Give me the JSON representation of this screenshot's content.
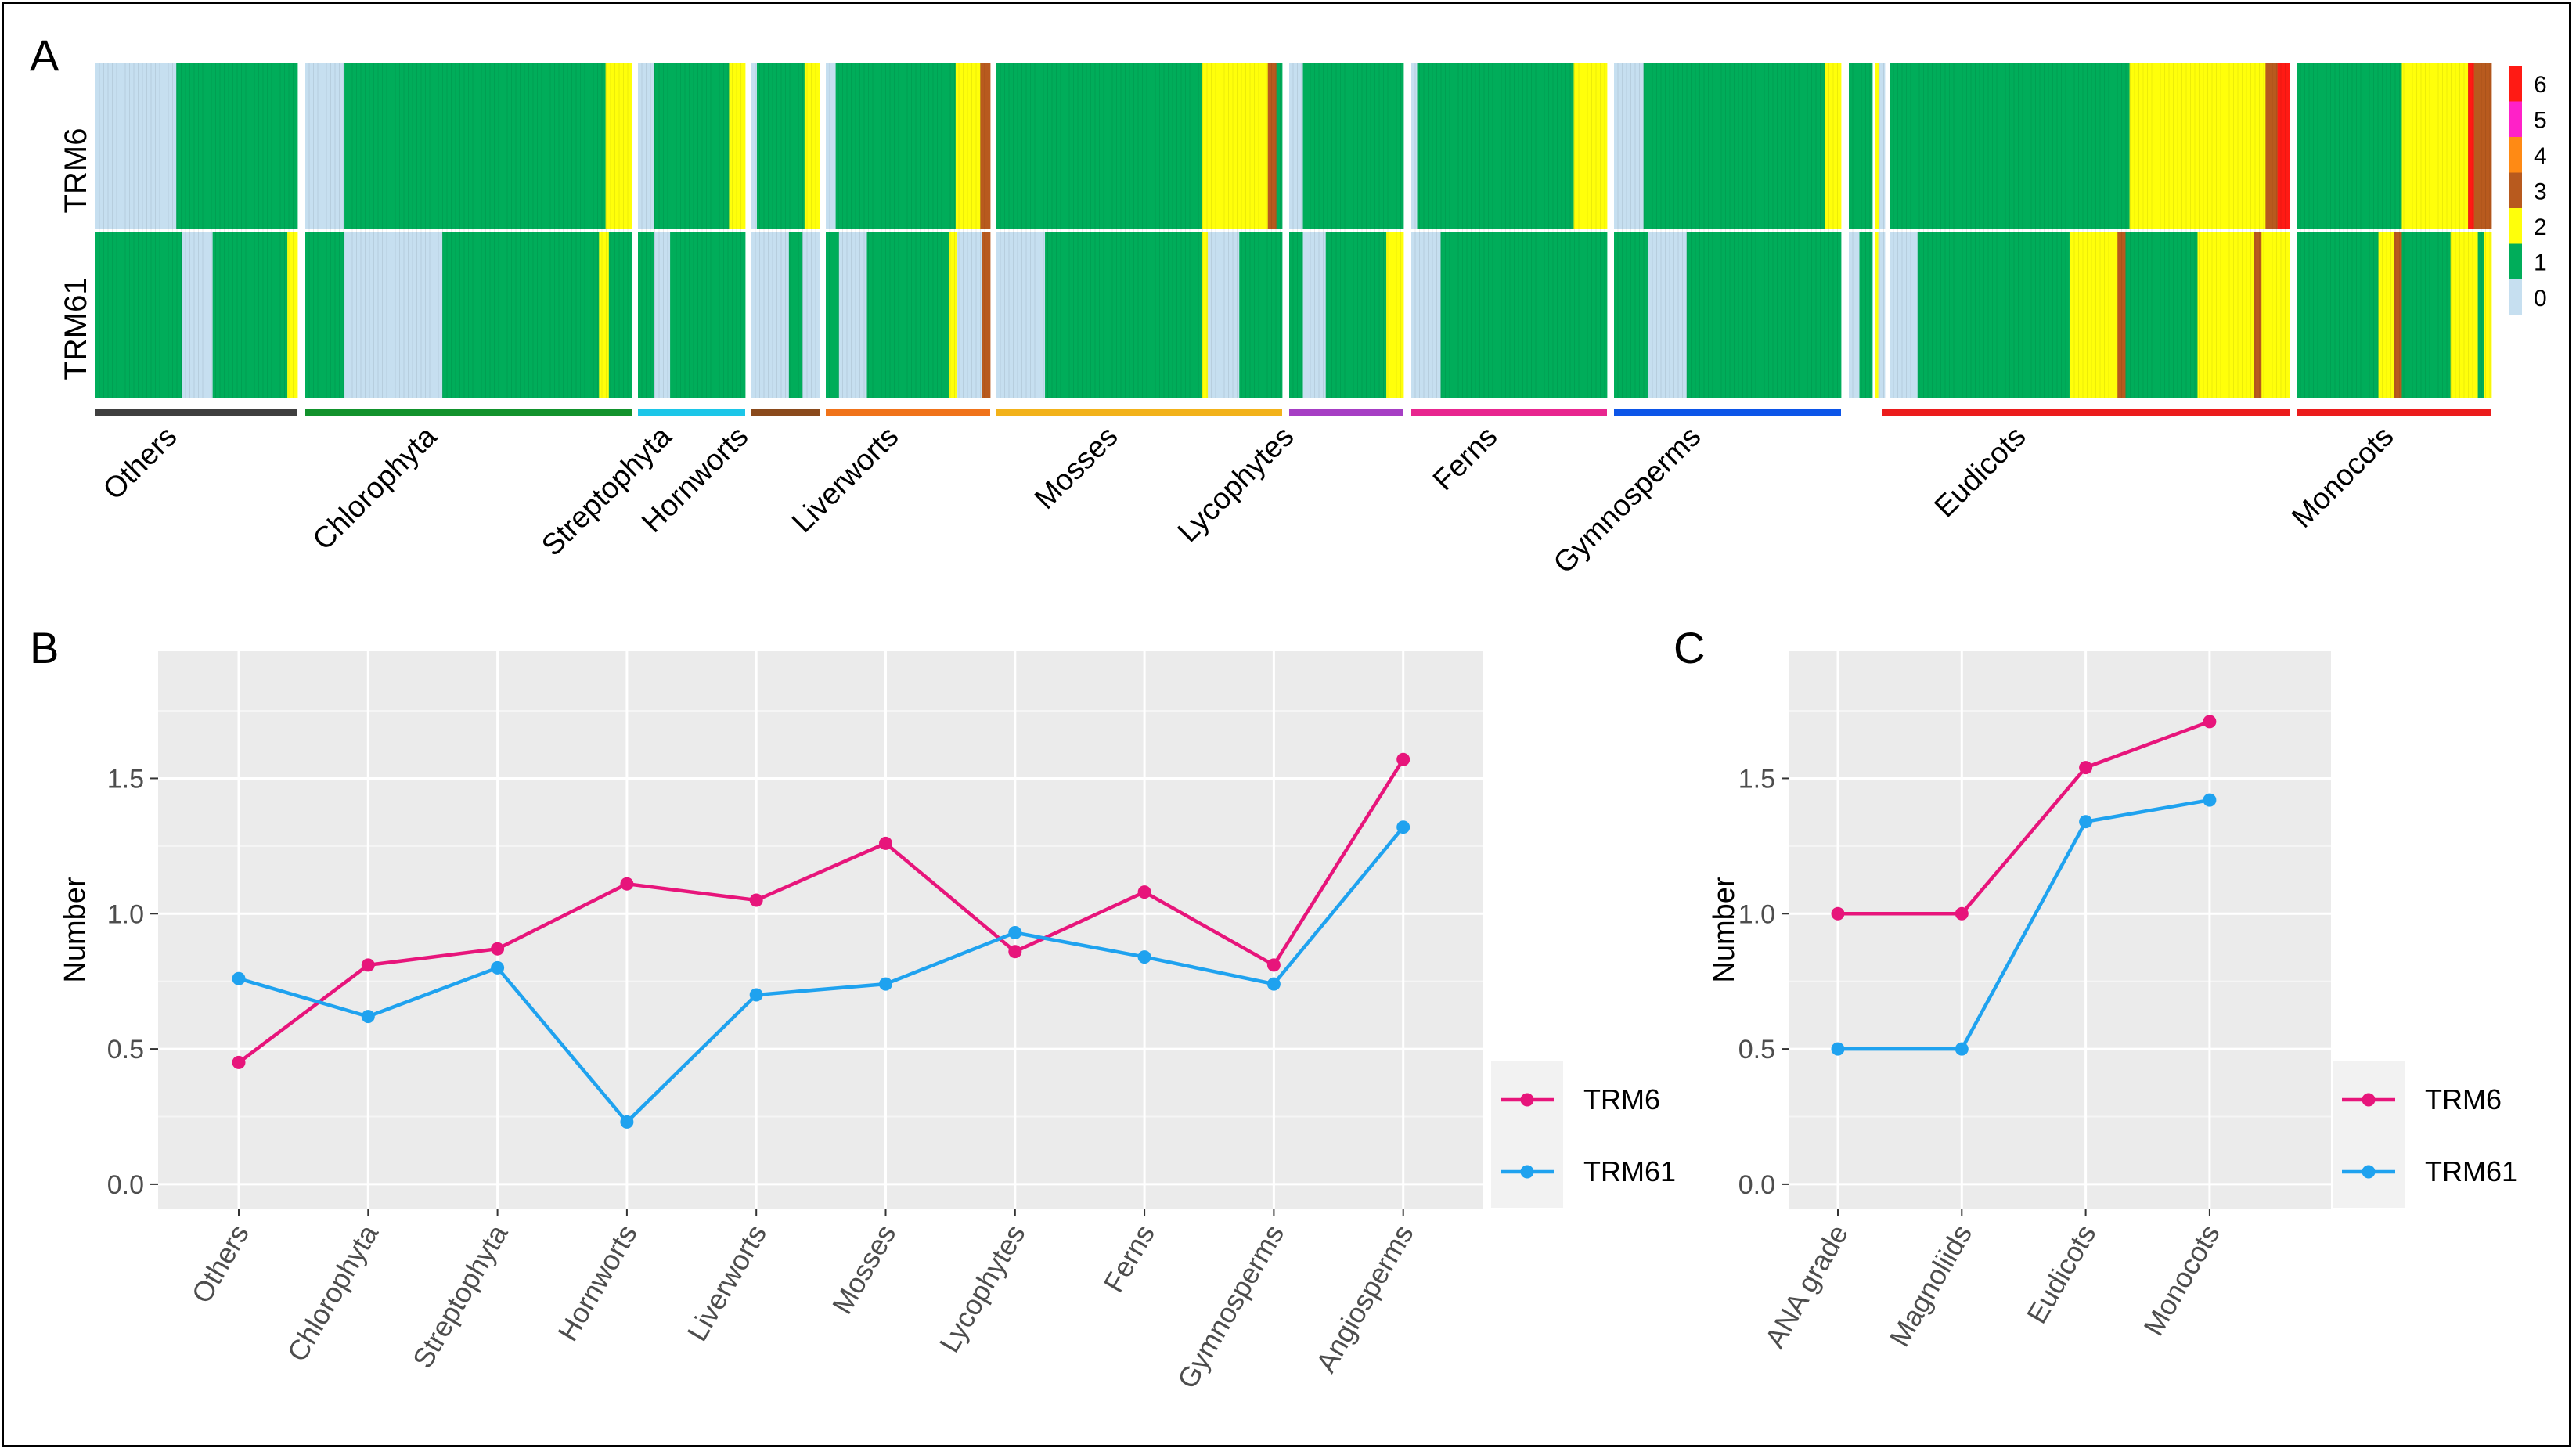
{
  "colors": {
    "trm6": "#E7157B",
    "trm61": "#1FA2EF",
    "panel_bg": "#EBEBEB",
    "grid_major": "#FFFFFF",
    "heat": {
      "0": "#C6DFF0",
      "1": "#00AD5A",
      "2": "#FFFF0A",
      "3": "#B85A1E",
      "4": "#FF8A14",
      "5": "#FF21C8",
      "6": "#FF1A14"
    }
  },
  "panel_labels": {
    "a": "A",
    "b": "B",
    "c": "C"
  },
  "heatmap": {
    "rows": [
      "TRM6",
      "TRM61"
    ],
    "legend": [
      "6",
      "5",
      "4",
      "3",
      "2",
      "1",
      "0"
    ],
    "groups": [
      {
        "name": "Others",
        "color": "#3F3F3F",
        "trm6": [
          [
            0,
            0.4
          ],
          [
            1,
            0.6
          ]
        ],
        "trm61": [
          [
            1,
            0.43
          ],
          [
            0,
            0.15
          ],
          [
            1,
            0.37
          ],
          [
            2,
            0.05
          ]
        ]
      },
      {
        "name": "Chlorophyta",
        "color": "#12922C",
        "trm6": [
          [
            0,
            0.12
          ],
          [
            1,
            0.8
          ],
          [
            2,
            0.08
          ]
        ],
        "trm61": [
          [
            1,
            0.12
          ],
          [
            0,
            0.3
          ],
          [
            1,
            0.48
          ],
          [
            2,
            0.03
          ],
          [
            1,
            0.07
          ]
        ]
      },
      {
        "name": "Streptophyta",
        "color": "#1CC6E8",
        "trm6": [
          [
            0,
            0.15
          ],
          [
            1,
            0.7
          ],
          [
            2,
            0.15
          ]
        ],
        "trm61": [
          [
            1,
            0.15
          ],
          [
            0,
            0.15
          ],
          [
            1,
            0.7
          ]
        ]
      },
      {
        "name": "Hornworts",
        "color": "#8A4A1C",
        "trm6": [
          [
            0,
            0.08
          ],
          [
            1,
            0.7
          ],
          [
            2,
            0.22
          ]
        ],
        "trm61": [
          [
            0,
            0.55
          ],
          [
            1,
            0.2
          ],
          [
            0,
            0.25
          ]
        ]
      },
      {
        "name": "Liverworts",
        "color": "#F0731A",
        "trm6": [
          [
            0,
            0.06
          ],
          [
            1,
            0.73
          ],
          [
            2,
            0.15
          ],
          [
            3,
            0.06
          ]
        ],
        "trm61": [
          [
            1,
            0.08
          ],
          [
            0,
            0.17
          ],
          [
            1,
            0.5
          ],
          [
            2,
            0.05
          ],
          [
            0,
            0.15
          ],
          [
            3,
            0.05
          ]
        ]
      },
      {
        "name": "Mosses",
        "color": "#F2B21A",
        "trm6": [
          [
            1,
            0.72
          ],
          [
            2,
            0.23
          ],
          [
            3,
            0.03
          ],
          [
            1,
            0.02
          ]
        ],
        "trm61": [
          [
            0,
            0.17
          ],
          [
            1,
            0.55
          ],
          [
            2,
            0.02
          ],
          [
            0,
            0.11
          ],
          [
            1,
            0.15
          ]
        ]
      },
      {
        "name": "Lycophytes",
        "color": "#A63EC4",
        "trm6": [
          [
            0,
            0.12
          ],
          [
            1,
            0.88
          ]
        ],
        "trm61": [
          [
            1,
            0.12
          ],
          [
            0,
            0.2
          ],
          [
            1,
            0.53
          ],
          [
            2,
            0.15
          ]
        ]
      },
      {
        "name": "Ferns",
        "color": "#E8268F",
        "trm6": [
          [
            0,
            0.03
          ],
          [
            1,
            0.8
          ],
          [
            2,
            0.17
          ]
        ],
        "trm61": [
          [
            0,
            0.15
          ],
          [
            1,
            0.85
          ]
        ]
      },
      {
        "name": "Gymnosperms",
        "color": "#0C55E8",
        "trm6": [
          [
            0,
            0.13
          ],
          [
            1,
            0.8
          ],
          [
            2,
            0.07
          ]
        ],
        "trm61": [
          [
            1,
            0.15
          ],
          [
            0,
            0.17
          ],
          [
            1,
            0.68
          ]
        ]
      },
      {
        "name": "",
        "color": "",
        "trm6": [
          [
            1,
            1.0
          ]
        ],
        "trm61": [
          [
            0,
            0.45
          ],
          [
            1,
            0.55
          ]
        ]
      },
      {
        "name": "",
        "color": "",
        "trm6": [
          [
            2,
            0.4
          ],
          [
            0,
            0.6
          ]
        ],
        "trm61": [
          [
            2,
            0.3
          ],
          [
            0,
            0.7
          ]
        ]
      },
      {
        "name": "Eudicots",
        "color": "#EB1C1C",
        "trm6": [
          [
            1,
            0.6
          ],
          [
            2,
            0.34
          ],
          [
            3,
            0.03
          ],
          [
            6,
            0.03
          ]
        ],
        "trm61": [
          [
            0,
            0.07
          ],
          [
            1,
            0.38
          ],
          [
            2,
            0.12
          ],
          [
            3,
            0.02
          ],
          [
            1,
            0.18
          ],
          [
            2,
            0.14
          ],
          [
            3,
            0.02
          ],
          [
            2,
            0.07
          ]
        ]
      },
      {
        "name": "Monocots",
        "color": "#EB1C1C",
        "trm6": [
          [
            1,
            0.54
          ],
          [
            2,
            0.34
          ],
          [
            6,
            0.03
          ],
          [
            3,
            0.09
          ]
        ],
        "trm61": [
          [
            1,
            0.42
          ],
          [
            2,
            0.08
          ],
          [
            3,
            0.04
          ],
          [
            1,
            0.25
          ],
          [
            2,
            0.14
          ],
          [
            1,
            0.03
          ],
          [
            2,
            0.04
          ]
        ]
      }
    ]
  },
  "chart_data": [
    {
      "type": "line",
      "panel": "B",
      "categories": [
        "Others",
        "Chlorophyta",
        "Streptophyta",
        "Hornworts",
        "Liverworts",
        "Mosses",
        "Lycophytes",
        "Ferns",
        "Gymnosperms",
        "Angiosperms"
      ],
      "series": [
        {
          "name": "TRM6",
          "values": [
            0.45,
            0.81,
            0.87,
            1.11,
            1.05,
            1.26,
            0.86,
            1.08,
            0.81,
            1.57
          ]
        },
        {
          "name": "TRM61",
          "values": [
            0.76,
            0.62,
            0.8,
            0.23,
            0.7,
            0.74,
            0.93,
            0.84,
            0.74,
            1.32
          ]
        }
      ],
      "ylabel": "Number",
      "yticks": [
        "0.0",
        "0.5",
        "1.0",
        "1.5"
      ],
      "ylim": [
        -0.09,
        1.97
      ],
      "legend": [
        "TRM6",
        "TRM61"
      ]
    },
    {
      "type": "line",
      "panel": "C",
      "categories": [
        "ANA grade",
        "Magnoliids",
        "Eudicots",
        "Monocots"
      ],
      "series": [
        {
          "name": "TRM6",
          "values": [
            1.0,
            1.0,
            1.54,
            1.71
          ]
        },
        {
          "name": "TRM61",
          "values": [
            0.5,
            0.5,
            1.34,
            1.42
          ]
        }
      ],
      "ylabel": "Number",
      "yticks": [
        "0.0",
        "0.5",
        "1.0",
        "1.5"
      ],
      "ylim": [
        -0.09,
        1.97
      ],
      "legend": [
        "TRM6",
        "TRM61"
      ]
    }
  ]
}
